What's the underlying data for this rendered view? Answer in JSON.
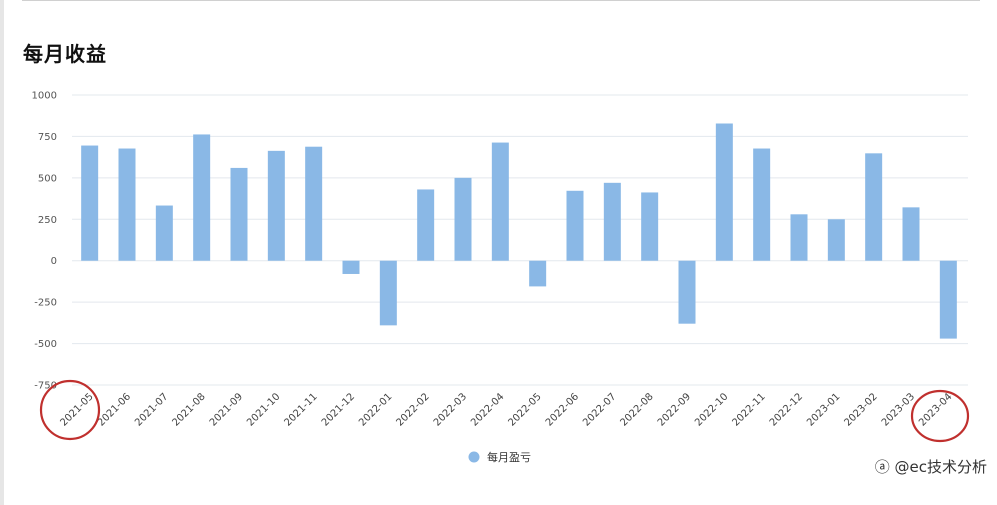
{
  "chart_data": {
    "type": "bar",
    "title": "每月收益",
    "categories": [
      "2021-05",
      "2021-06",
      "2021-07",
      "2021-08",
      "2021-09",
      "2021-10",
      "2021-11",
      "2021-12",
      "2022-01",
      "2022-02",
      "2022-03",
      "2022-04",
      "2022-05",
      "2022-06",
      "2022-07",
      "2022-08",
      "2022-09",
      "2022-10",
      "2022-11",
      "2022-12",
      "2023-01",
      "2023-02",
      "2023-03",
      "2023-04"
    ],
    "series": [
      {
        "name": "每月盈亏",
        "color": "#8ab8e6",
        "values": [
          695,
          677,
          333,
          762,
          560,
          663,
          688,
          -80,
          -390,
          430,
          500,
          713,
          -155,
          422,
          470,
          412,
          -380,
          828,
          677,
          280,
          250,
          648,
          322,
          -470
        ]
      }
    ],
    "ylim": [
      -750,
      1000
    ],
    "yticks": [
      1000,
      750,
      500,
      250,
      0,
      -250,
      -500,
      -750
    ],
    "grid": true,
    "legend": "bottom-center",
    "annotations": [
      "circle around 2021-05",
      "circle around 2023-04"
    ],
    "annotation_color": "#c0302e"
  },
  "watermark": "@ec技术分析"
}
